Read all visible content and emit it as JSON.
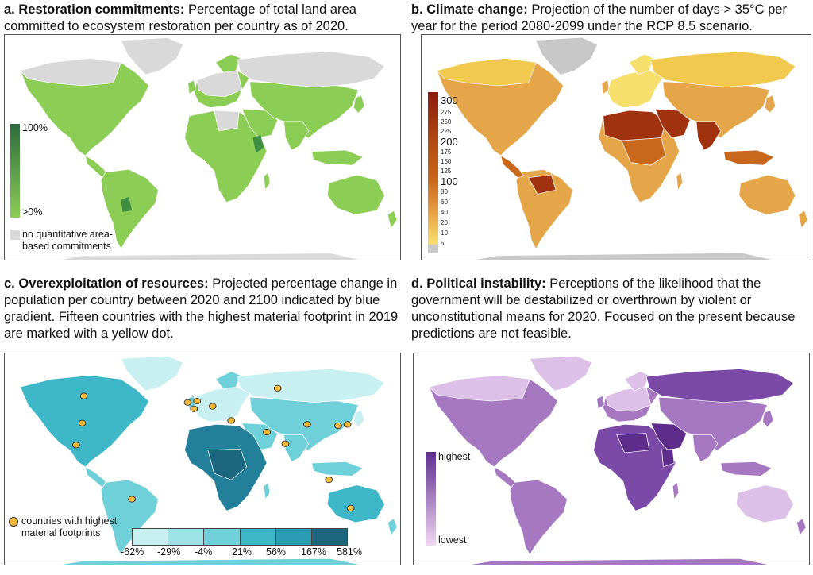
{
  "panels": {
    "a": {
      "letter": "a.",
      "title": "Restoration commitments:",
      "description": "Percentage of total land area committed to ecosystem restoration per country as of 2020.",
      "legend": {
        "high": "100%",
        "low": ">0%",
        "na_label": "no quantitative area- based commitments"
      },
      "colors": {
        "high": "#2e6b3d",
        "low": "#8ccd55",
        "na": "#d9d9d9"
      }
    },
    "b": {
      "letter": "b.",
      "title": "Climate change:",
      "description": "Projection of the number of days > 35°C per year for the period 2080-2099 under the RCP 8.5 scenario.",
      "legend": {
        "ticks_major": [
          "300",
          "200",
          "100"
        ],
        "ticks_minor": [
          "275",
          "250",
          "225",
          "175",
          "150",
          "125",
          "80",
          "60",
          "40",
          "20",
          "10",
          "5"
        ]
      },
      "colors": {
        "high": "#8b1a0c",
        "mid": "#c9681d",
        "low": "#f7df6e",
        "na": "#c8c8c8"
      }
    },
    "c": {
      "letter": "c.",
      "title": "Overexploitation of resources:",
      "description": "Projected percentage change in population per country between 2020 and 2100 indicated by blue gradient. Fifteen countries with the highest material footprint in 2019 are marked with a yellow dot.",
      "legend": {
        "bins": [
          "-62%",
          "-29%",
          "-4%",
          "21%",
          "56%",
          "167%",
          "581%"
        ],
        "bin_colors": [
          "#c8f0f0",
          "#9ee3e6",
          "#6fd0da",
          "#3eb7c9",
          "#2a9cb3",
          "#24809a",
          "#1d6680"
        ],
        "dot_label": "countries with highest material footprints"
      },
      "colors": {
        "dot": "#f2b638"
      }
    },
    "d": {
      "letter": "d.",
      "title": "Political instability:",
      "description": "Perceptions of the likelihood that the government will be destabilized or overthrown by violent or unconstitutional means for 2020. Focused on the present because predictions are not feasible.",
      "legend": {
        "high": "highest",
        "low": "lowest"
      },
      "colors": {
        "high": "#5e2d8c",
        "low": "#efd8f3"
      }
    }
  }
}
